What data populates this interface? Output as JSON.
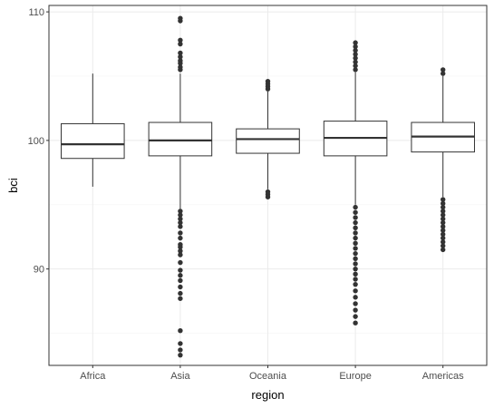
{
  "chart_data": {
    "type": "box",
    "xlabel": "region",
    "ylabel": "bci",
    "ylim": [
      82.5,
      110.5
    ],
    "y_ticks": [
      {
        "value": 90,
        "label": "90"
      },
      {
        "value": 100,
        "label": "100"
      },
      {
        "value": 110,
        "label": "110"
      }
    ],
    "grid": true,
    "categories": [
      "Africa",
      "Asia",
      "Oceania",
      "Europe",
      "Americas"
    ],
    "boxes": [
      {
        "category": "Africa",
        "whisker_low": 96.4,
        "q1": 98.6,
        "median": 99.7,
        "q3": 101.3,
        "whisker_high": 105.2,
        "outliers": []
      },
      {
        "category": "Asia",
        "whisker_low": 94.7,
        "q1": 98.8,
        "median": 100.0,
        "q3": 101.4,
        "whisker_high": 105.2,
        "outliers": [
          109.5,
          109.3,
          107.8,
          107.5,
          106.8,
          106.5,
          106.2,
          106.0,
          105.7,
          105.5,
          94.5,
          94.2,
          93.9,
          93.6,
          93.3,
          92.8,
          92.4,
          91.9,
          91.7,
          91.4,
          91.1,
          90.5,
          89.9,
          89.5,
          89.1,
          88.6,
          88.1,
          87.7,
          85.2,
          84.2,
          83.7,
          83.3
        ]
      },
      {
        "category": "Oceania",
        "whisker_low": 96.2,
        "q1": 99.0,
        "median": 100.1,
        "q3": 100.9,
        "whisker_high": 103.8,
        "outliers": [
          104.6,
          104.4,
          104.2,
          104.0,
          96.0,
          95.8,
          95.6
        ]
      },
      {
        "category": "Europe",
        "whisker_low": 95.0,
        "q1": 98.8,
        "median": 100.2,
        "q3": 101.5,
        "whisker_high": 105.3,
        "outliers": [
          107.6,
          107.3,
          107.0,
          106.7,
          106.4,
          106.1,
          105.8,
          105.5,
          94.8,
          94.4,
          94.0,
          93.6,
          93.2,
          92.8,
          92.4,
          92.0,
          91.6,
          91.2,
          90.8,
          90.4,
          90.0,
          89.6,
          89.2,
          88.8,
          88.3,
          87.8,
          87.3,
          86.8,
          86.3,
          85.8
        ]
      },
      {
        "category": "Americas",
        "whisker_low": 95.6,
        "q1": 99.1,
        "median": 100.3,
        "q3": 101.4,
        "whisker_high": 105.0,
        "outliers": [
          105.5,
          105.2,
          95.4,
          95.1,
          94.8,
          94.5,
          94.2,
          93.9,
          93.6,
          93.3,
          93.0,
          92.7,
          92.4,
          92.1,
          91.8,
          91.5
        ]
      }
    ],
    "colors": {
      "panel_background": "#ffffff",
      "panel_border": "#333333",
      "grid_major": "#ebebeb",
      "grid_minor": "#f5f5f5",
      "box_fill": "#ffffff",
      "box_line": "#333333",
      "outlier": "#333333",
      "tick_text": "#4d4d4d",
      "title_text": "#000000"
    }
  }
}
